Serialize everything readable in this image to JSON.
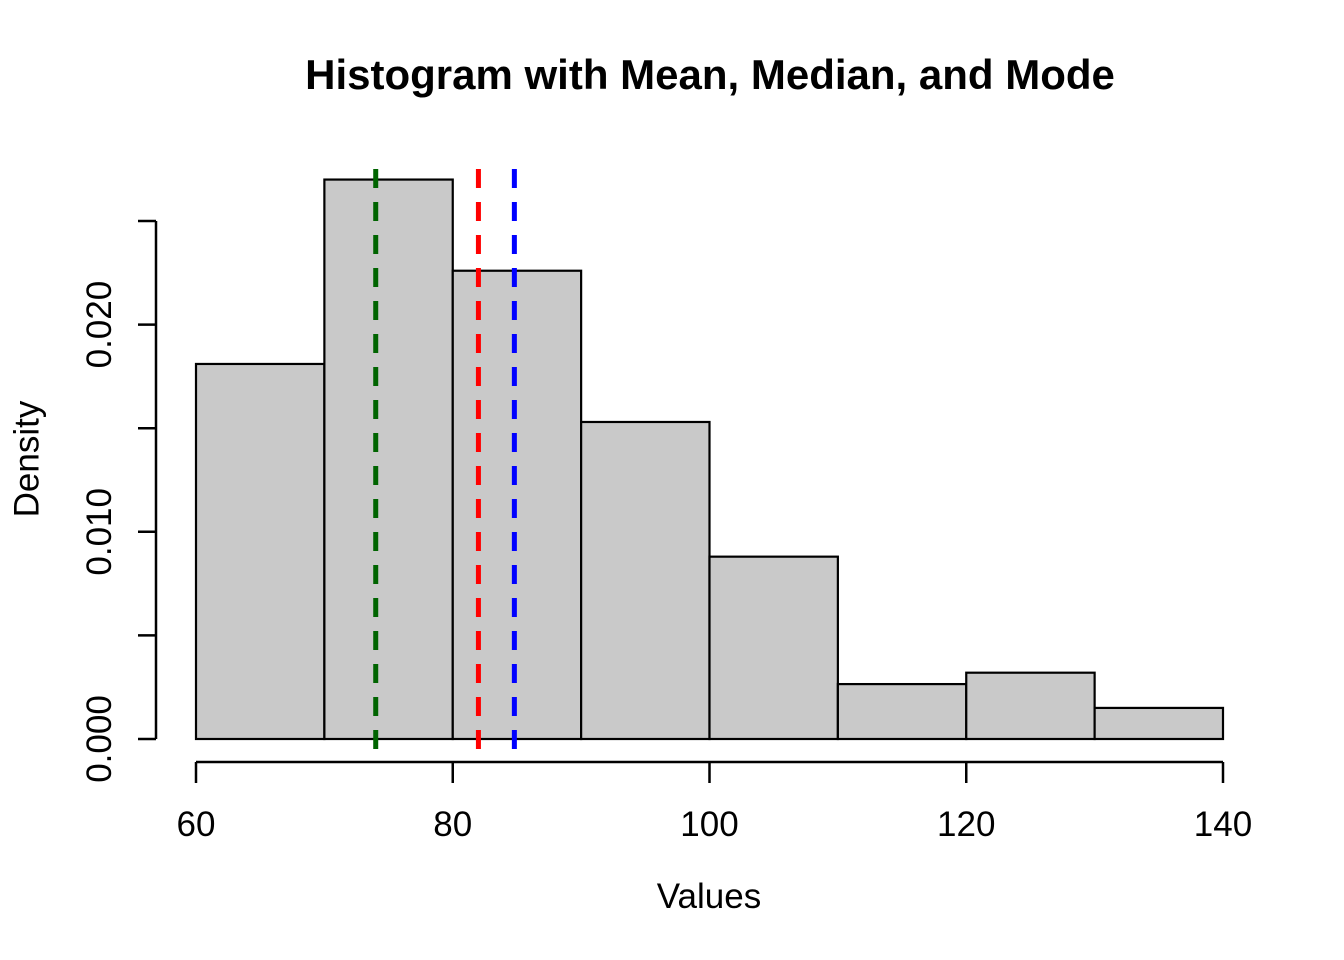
{
  "chart_data": {
    "type": "bar",
    "subtype": "histogram",
    "title": "Histogram with Mean, Median, and Mode",
    "xlabel": "Values",
    "ylabel": "Density",
    "xlim": [
      60,
      140
    ],
    "ylim": [
      0,
      0.025
    ],
    "grid": false,
    "legend": "none",
    "bin_width": 10,
    "bin_edges": [
      60,
      70,
      80,
      90,
      100,
      110,
      120,
      130,
      140
    ],
    "densities": [
      0.0181,
      0.027,
      0.0226,
      0.0153,
      0.0088,
      0.00265,
      0.0032,
      0.0015
    ],
    "x_ticks": [
      60,
      80,
      100,
      120,
      140
    ],
    "x_tick_labels": [
      "60",
      "80",
      "100",
      "120",
      "140"
    ],
    "y_ticks": [
      0,
      0.005,
      0.01,
      0.015,
      0.02,
      0.025
    ],
    "y_tick_labels": [
      "0.000",
      "",
      "0.010",
      "",
      "0.020",
      ""
    ],
    "bar_fill": "#C9C9C9",
    "bar_stroke": "#000000",
    "reference_lines": [
      {
        "role": "mode",
        "x": 74,
        "color": "#006400",
        "style": "dashed"
      },
      {
        "role": "median",
        "x": 82,
        "color": "#FF0000",
        "style": "dashed"
      },
      {
        "role": "mean",
        "x": 84.8,
        "color": "#0000FF",
        "style": "dashed"
      }
    ]
  }
}
